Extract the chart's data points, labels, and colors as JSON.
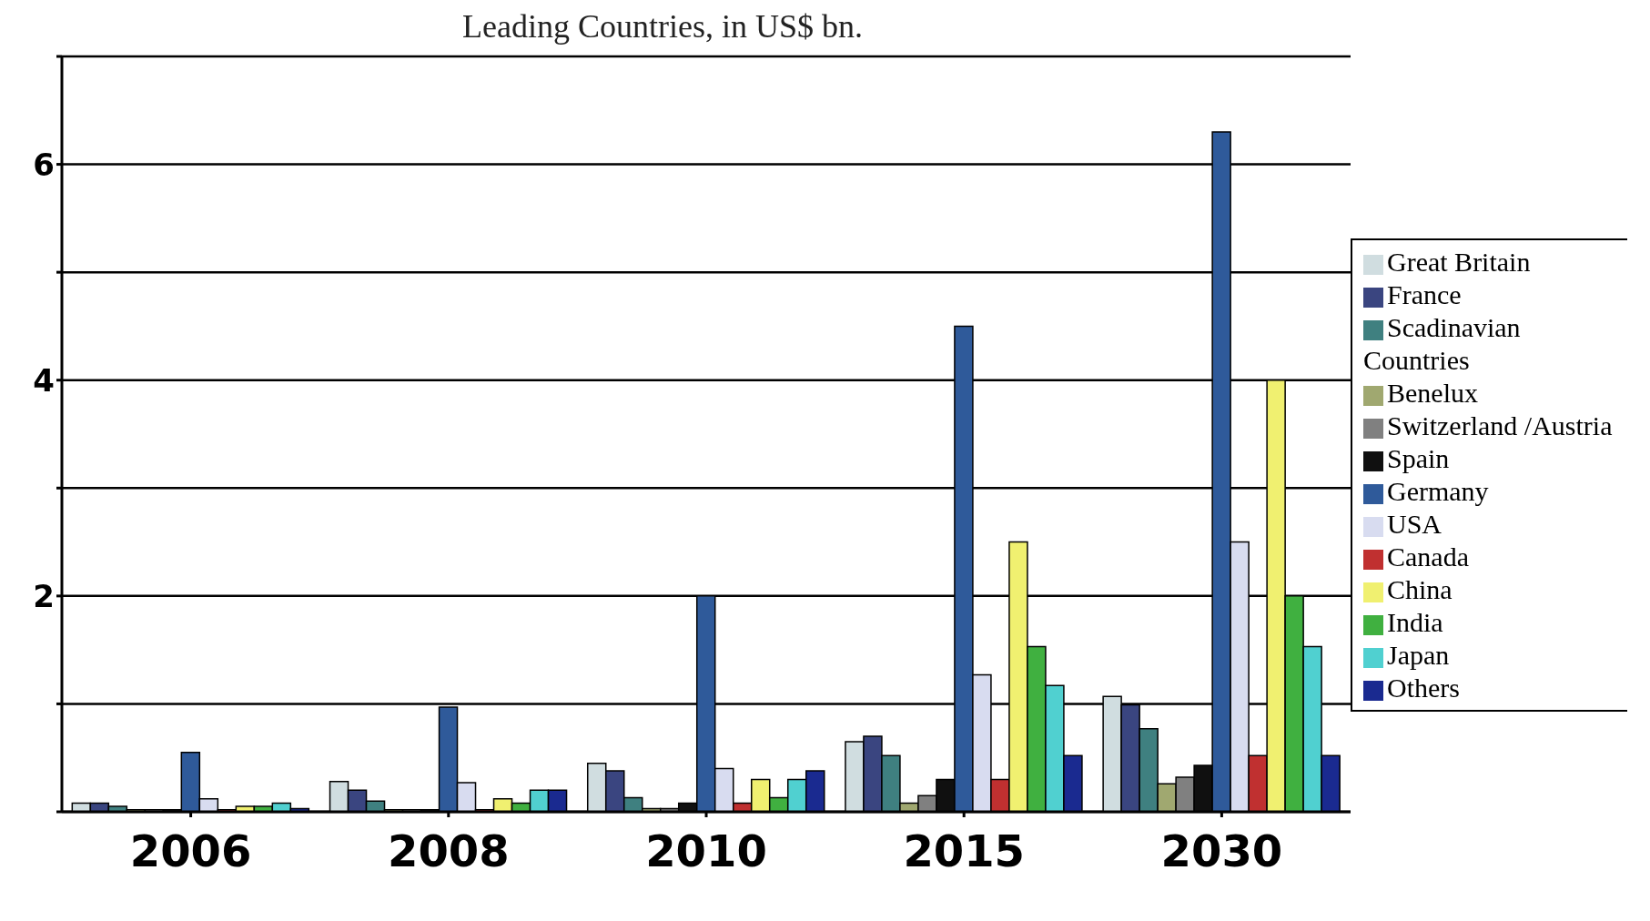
{
  "chart_data": {
    "type": "bar",
    "title": "Leading Countries, in US$ bn.",
    "categories": [
      "2006",
      "2008",
      "2010",
      "2015",
      "2030"
    ],
    "series": [
      {
        "name": "Great Britain",
        "color": "#d0dde0",
        "values": [
          0.08,
          0.28,
          0.45,
          0.65,
          1.07
        ]
      },
      {
        "name": "France",
        "color": "#3a4580",
        "values": [
          0.08,
          0.2,
          0.38,
          0.7,
          0.99
        ]
      },
      {
        "name": "Scadinavian Countries",
        "color": "#3f8080",
        "values": [
          0.05,
          0.1,
          0.13,
          0.52,
          0.77
        ]
      },
      {
        "name": "Benelux",
        "color": "#a0a870",
        "values": [
          0.02,
          0.02,
          0.03,
          0.08,
          0.26
        ]
      },
      {
        "name": "Switzerland /Austria",
        "color": "#808080",
        "values": [
          0.02,
          0.02,
          0.03,
          0.15,
          0.32
        ]
      },
      {
        "name": "Spain",
        "color": "#101010",
        "values": [
          0.02,
          0.02,
          0.08,
          0.3,
          0.43
        ]
      },
      {
        "name": "Germany",
        "color": "#2f5a9a",
        "values": [
          0.55,
          0.97,
          2.0,
          4.5,
          6.3
        ]
      },
      {
        "name": "USA",
        "color": "#d8dcf0",
        "values": [
          0.12,
          0.27,
          0.4,
          1.27,
          2.5
        ]
      },
      {
        "name": "Canada",
        "color": "#c03030",
        "values": [
          0.02,
          0.02,
          0.08,
          0.3,
          0.52
        ]
      },
      {
        "name": "China",
        "color": "#f0f070",
        "values": [
          0.05,
          0.12,
          0.3,
          2.5,
          4.0
        ]
      },
      {
        "name": "India",
        "color": "#40b040",
        "values": [
          0.05,
          0.08,
          0.13,
          1.53,
          2.0
        ]
      },
      {
        "name": "Japan",
        "color": "#50d0d0",
        "values": [
          0.08,
          0.2,
          0.3,
          1.17,
          1.53
        ]
      },
      {
        "name": "Others",
        "color": "#1a2a90",
        "values": [
          0.03,
          0.2,
          0.38,
          0.52,
          0.52
        ]
      }
    ],
    "ylim": [
      0,
      7
    ],
    "yticks": [
      {
        "value": 0,
        "label": null
      },
      {
        "value": 1,
        "label": null
      },
      2,
      {
        "value": 3,
        "label": null
      },
      4,
      {
        "value": 5,
        "label": null
      },
      6,
      {
        "value": 7,
        "label": null
      }
    ],
    "grid": "y",
    "legend": "right"
  }
}
